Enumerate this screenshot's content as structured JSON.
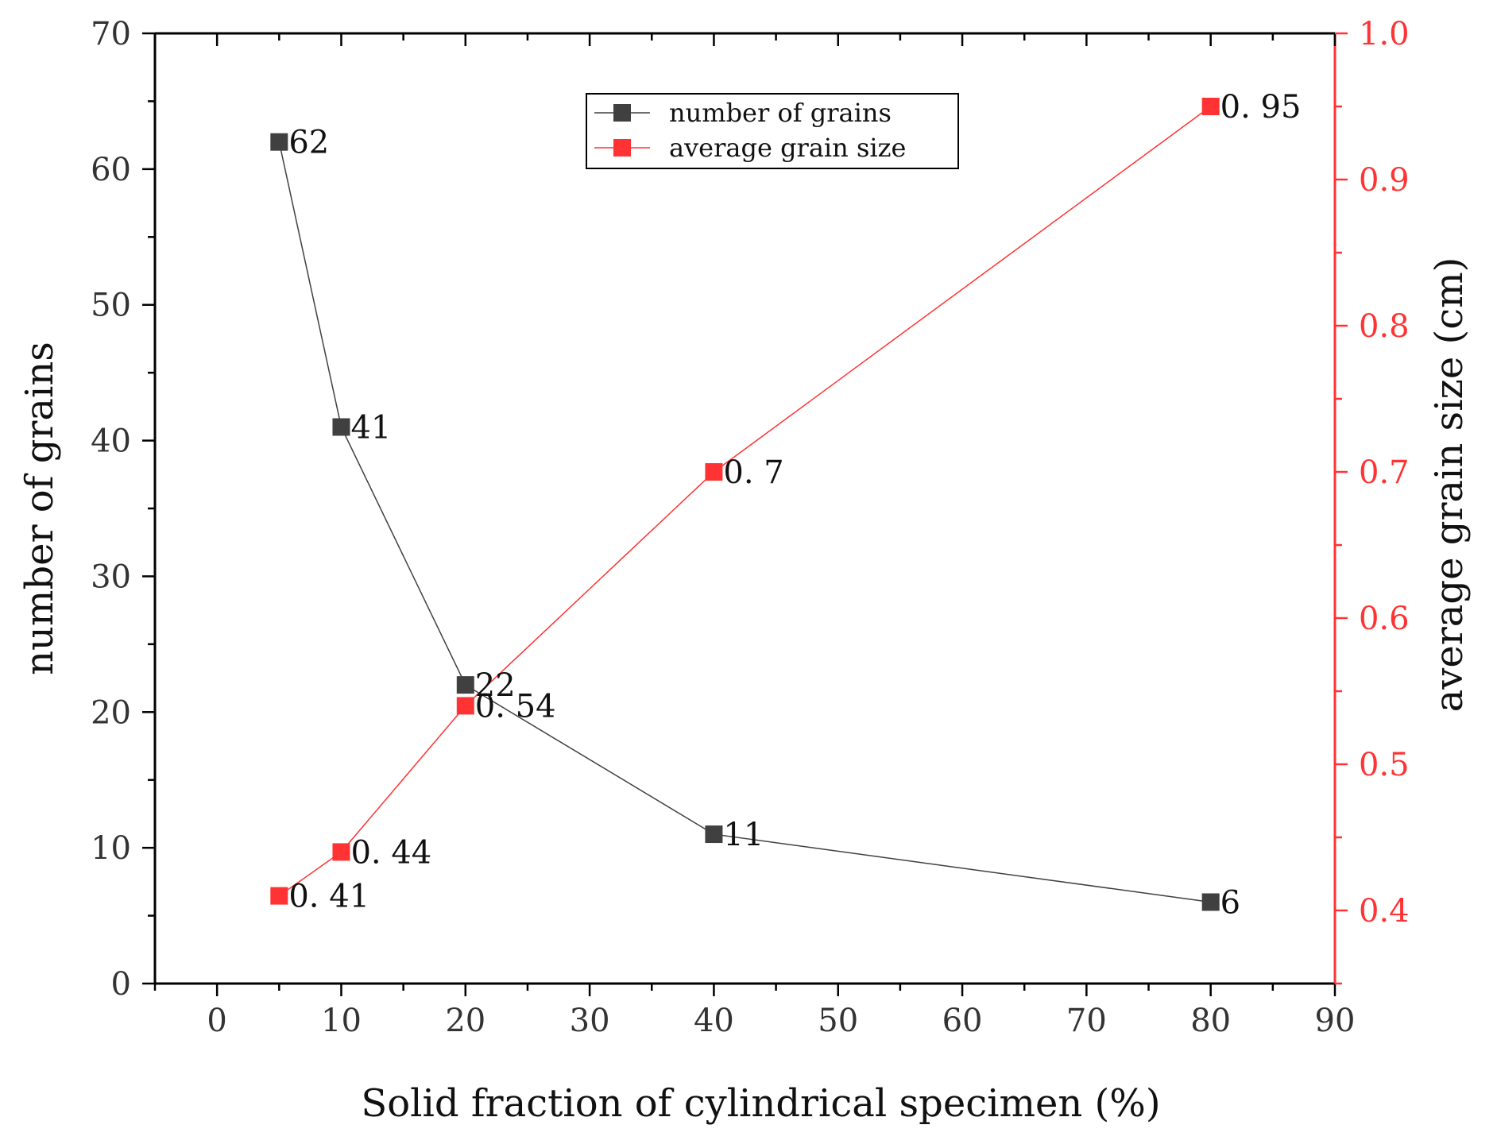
{
  "chart_data": {
    "type": "line",
    "x": [
      5,
      10,
      20,
      40,
      80
    ],
    "xlabel": "Solid fraction of cylindrical specimen (%)",
    "xlim": [
      -5,
      90
    ],
    "xticks": [
      0,
      10,
      20,
      30,
      40,
      50,
      60,
      70,
      80,
      90
    ],
    "ylabel_left": "number of grains",
    "ylim_left": [
      0,
      70
    ],
    "yticks_left": [
      0,
      10,
      20,
      30,
      40,
      50,
      60,
      70
    ],
    "ylabel_right": "average grain size (cm)",
    "ylim_right": [
      0.35,
      1.0
    ],
    "yticks_right": [
      0.4,
      0.5,
      0.6,
      0.7,
      0.8,
      0.9,
      1.0
    ],
    "grid": false,
    "legend_position": "top-center",
    "series": [
      {
        "name": "number of grains",
        "axis": "left",
        "color": "#404040",
        "marker": "square",
        "values": [
          62,
          41,
          22,
          11,
          6
        ],
        "labels": [
          "62",
          "41",
          "22",
          "11",
          "6"
        ]
      },
      {
        "name": "average grain size",
        "axis": "right",
        "color": "#ff3333",
        "marker": "square",
        "values": [
          0.41,
          0.44,
          0.54,
          0.7,
          0.95
        ],
        "labels": [
          "0. 41",
          "0. 44",
          "0. 54",
          "0. 7",
          "0. 95"
        ]
      }
    ],
    "colors": {
      "left_axis": "#333333",
      "right_axis": "#ff3333"
    }
  }
}
